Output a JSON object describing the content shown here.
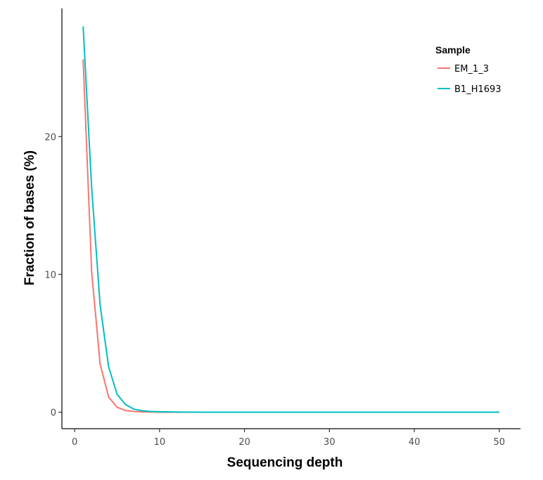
{
  "chart_data": {
    "type": "line",
    "xlabel": "Sequencing depth",
    "ylabel": "Fraction of bases (%)",
    "xlim": [
      -1.5,
      52.5
    ],
    "ylim": [
      -1.2,
      29.3
    ],
    "xticks": [
      0,
      10,
      20,
      30,
      40,
      50
    ],
    "yticks": [
      0,
      10,
      20
    ],
    "grid": false,
    "legend": {
      "title": "Sample",
      "placement": "top-right"
    },
    "series": [
      {
        "name": "EM_1_3",
        "color": "#F8766D",
        "x": [
          1,
          2,
          3,
          4,
          5,
          6,
          7,
          8,
          9,
          10,
          12,
          15,
          20,
          30,
          40,
          50
        ],
        "values": [
          25.6,
          10.2,
          3.5,
          1.1,
          0.35,
          0.12,
          0.05,
          0.02,
          0.01,
          0.0,
          0.0,
          0.0,
          0.0,
          0.0,
          0.0,
          0.0
        ]
      },
      {
        "name": "B1_H1693",
        "color": "#00BFC4",
        "x": [
          1,
          2,
          3,
          4,
          5,
          6,
          7,
          8,
          9,
          10,
          12,
          15,
          20,
          30,
          40,
          50
        ],
        "values": [
          28.0,
          16.3,
          7.8,
          3.3,
          1.3,
          0.55,
          0.22,
          0.1,
          0.05,
          0.03,
          0.01,
          0.0,
          0.0,
          0.0,
          0.0,
          0.0
        ]
      }
    ]
  }
}
